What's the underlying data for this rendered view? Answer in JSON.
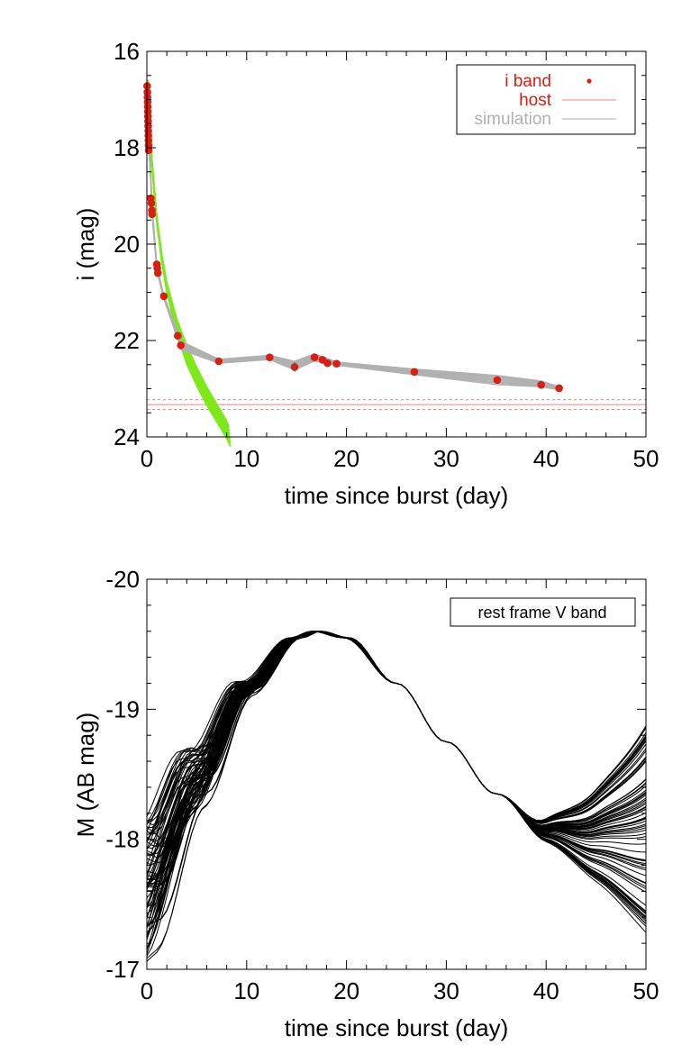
{
  "chart_data": [
    {
      "type": "scatter",
      "xlabel": "time since burst (day)",
      "ylabel": "i (mag)",
      "xlim": [
        0,
        50
      ],
      "ylim": [
        24,
        16
      ],
      "y_inverted": true,
      "xticks": [
        "0",
        "10",
        "20",
        "30",
        "40",
        "50"
      ],
      "yticks": [
        "16",
        "18",
        "20",
        "22",
        "24"
      ],
      "grid": false,
      "legend_position": "top-right",
      "legend": [
        {
          "label": "i band",
          "color": "#d42015",
          "marker": "filled-circle"
        },
        {
          "label": "host",
          "color": "#f08080",
          "marker": "line"
        },
        {
          "label": "simulation",
          "color": "#b0b0b0",
          "marker": "line"
        }
      ],
      "series": [
        {
          "name": "i band",
          "color": "#d42015",
          "points": [
            [
              0.03,
              16.72
            ],
            [
              0.05,
              16.85
            ],
            [
              0.06,
              16.95
            ],
            [
              0.08,
              17.05
            ],
            [
              0.09,
              17.15
            ],
            [
              0.1,
              17.25
            ],
            [
              0.11,
              17.35
            ],
            [
              0.12,
              17.45
            ],
            [
              0.13,
              17.55
            ],
            [
              0.14,
              17.65
            ],
            [
              0.15,
              17.75
            ],
            [
              0.16,
              17.85
            ],
            [
              0.17,
              17.95
            ],
            [
              0.18,
              18.05
            ],
            [
              0.4,
              19.05
            ],
            [
              0.45,
              19.15
            ],
            [
              0.5,
              19.3
            ],
            [
              0.52,
              19.38
            ],
            [
              1.0,
              20.42
            ],
            [
              1.05,
              20.5
            ],
            [
              1.1,
              20.6
            ],
            [
              1.7,
              21.08
            ],
            [
              3.1,
              21.9
            ],
            [
              3.4,
              22.1
            ],
            [
              7.2,
              22.43
            ],
            [
              12.3,
              22.35
            ],
            [
              14.8,
              22.55
            ],
            [
              16.8,
              22.35
            ],
            [
              17.6,
              22.4
            ],
            [
              18.1,
              22.47
            ],
            [
              19.0,
              22.48
            ],
            [
              26.8,
              22.65
            ],
            [
              35.1,
              22.82
            ],
            [
              39.5,
              22.92
            ],
            [
              41.3,
              22.99
            ]
          ]
        },
        {
          "name": "host",
          "color": "#f08080",
          "values": [
            23.33
          ],
          "band": [
            23.23,
            23.43
          ]
        },
        {
          "name": "simulation",
          "color": "#b0b0b0",
          "points": [
            [
              0.2,
              17.9
            ],
            [
              0.6,
              19.5
            ],
            [
              1.0,
              20.5
            ],
            [
              1.7,
              21.1
            ],
            [
              3.1,
              21.9
            ],
            [
              3.4,
              22.1
            ],
            [
              7.2,
              22.43
            ],
            [
              12.3,
              22.35
            ],
            [
              14.8,
              22.52
            ],
            [
              16.8,
              22.35
            ],
            [
              19.0,
              22.48
            ],
            [
              26.8,
              22.65
            ],
            [
              35.1,
              22.82
            ],
            [
              39.5,
              22.9
            ],
            [
              41.3,
              22.99
            ]
          ]
        },
        {
          "name": "",
          "color": "#7ee81a",
          "points": [
            [
              0.1,
              16.6
            ],
            [
              0.5,
              18.3
            ],
            [
              1,
              19.5
            ],
            [
              1.5,
              20.3
            ],
            [
              2,
              20.9
            ],
            [
              3,
              21.7
            ],
            [
              4,
              22.3
            ],
            [
              5,
              22.75
            ],
            [
              6,
              23.15
            ],
            [
              7,
              23.5
            ],
            [
              8,
              23.85
            ],
            [
              8.3,
              24.0
            ]
          ]
        }
      ]
    },
    {
      "type": "line",
      "xlabel": "time since burst (day)",
      "ylabel": "M (AB mag)",
      "xlim": [
        0,
        50
      ],
      "ylim": [
        -17,
        -20
      ],
      "xticks": [
        "0",
        "10",
        "20",
        "30",
        "40",
        "50"
      ],
      "yticks": [
        "-20",
        "-19",
        "-18",
        "-17"
      ],
      "grid": false,
      "legend_position": "top-right",
      "legend": [
        {
          "label": "rest frame V band"
        }
      ],
      "series": [
        {
          "name": "rest frame V band",
          "color": "#000000",
          "n_curves": 80,
          "points_x": [
            0,
            5,
            10,
            15,
            17,
            20,
            25,
            30,
            35,
            40,
            45,
            50
          ],
          "points_y": [
            -17.6,
            -18.45,
            -19.15,
            -19.55,
            -19.6,
            -19.55,
            -19.2,
            -18.75,
            -18.35,
            -18.05,
            -17.95,
            -17.9
          ],
          "spread_early": 0.55,
          "spread_late": 0.6
        }
      ]
    }
  ]
}
